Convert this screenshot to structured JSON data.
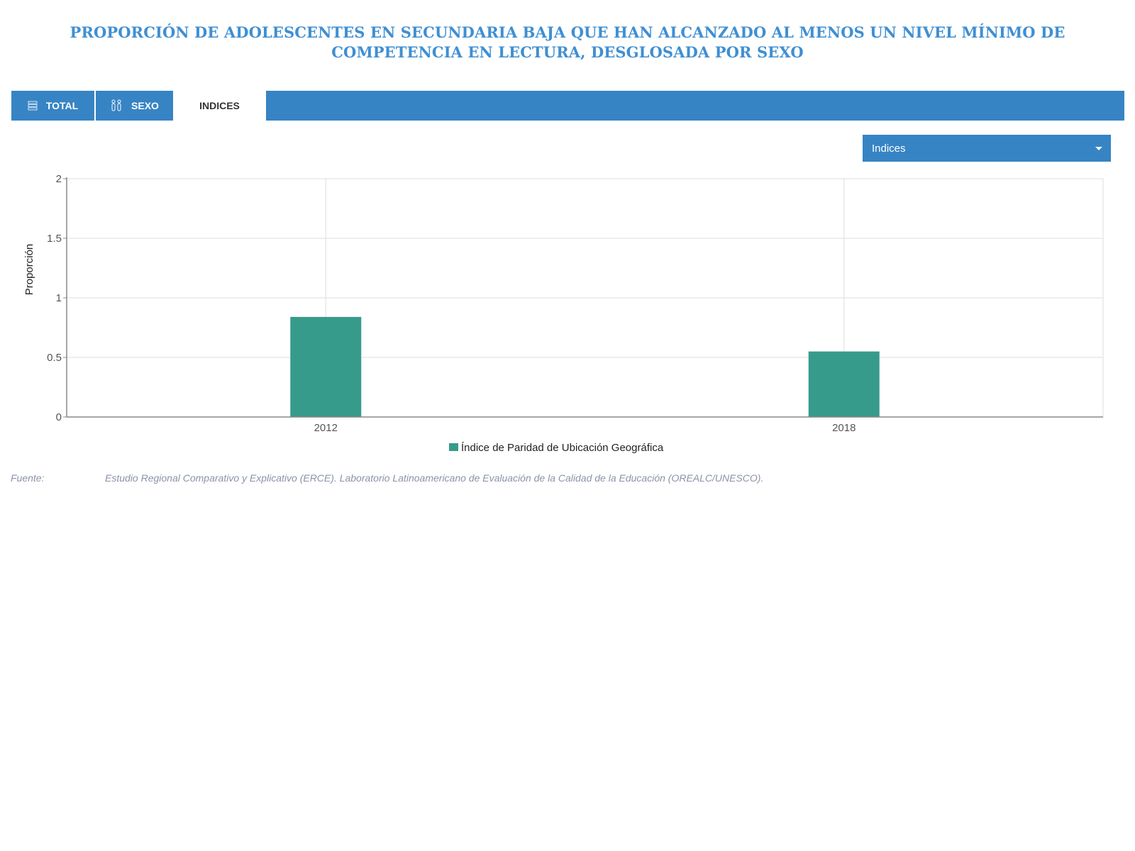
{
  "page": {
    "title": "PROPORCIÓN DE ADOLESCENTES EN SECUNDARIA BAJA QUE HAN ALCANZADO AL MENOS UN NIVEL MÍNIMO DE COMPETENCIA EN LECTURA, DESGLOSADA POR SEXO"
  },
  "tabs": [
    {
      "label": "TOTAL",
      "icon": "list-icon",
      "active": false
    },
    {
      "label": "SEXO",
      "icon": "people-icon",
      "active": false
    },
    {
      "label": "INDICES",
      "icon": "",
      "active": true
    }
  ],
  "dropdown": {
    "selected": "Indices",
    "icon": "caret-down-icon"
  },
  "colors": {
    "accent": "#3784c4",
    "title": "#3f8fd2",
    "bar": "#379b8b"
  },
  "chart_data": {
    "type": "bar",
    "categories": [
      "2012",
      "2018"
    ],
    "series": [
      {
        "name": "Índice de Paridad de Ubicación Geográfica",
        "values": [
          0.84,
          0.55
        ],
        "color": "#379b8b"
      }
    ],
    "ylabel": "Proporción",
    "xlabel": "",
    "ylim": [
      0,
      2
    ],
    "yticks": [
      "0",
      "0.5",
      "1",
      "1.5",
      "2"
    ],
    "grid": true,
    "legend": "bottom-center"
  },
  "source": {
    "label": "Fuente:",
    "text": "Estudio Regional Comparativo y Explicativo (ERCE). Laboratorio Latinoamericano de Evaluación de la Calidad de la Educación (OREALC/UNESCO)."
  }
}
